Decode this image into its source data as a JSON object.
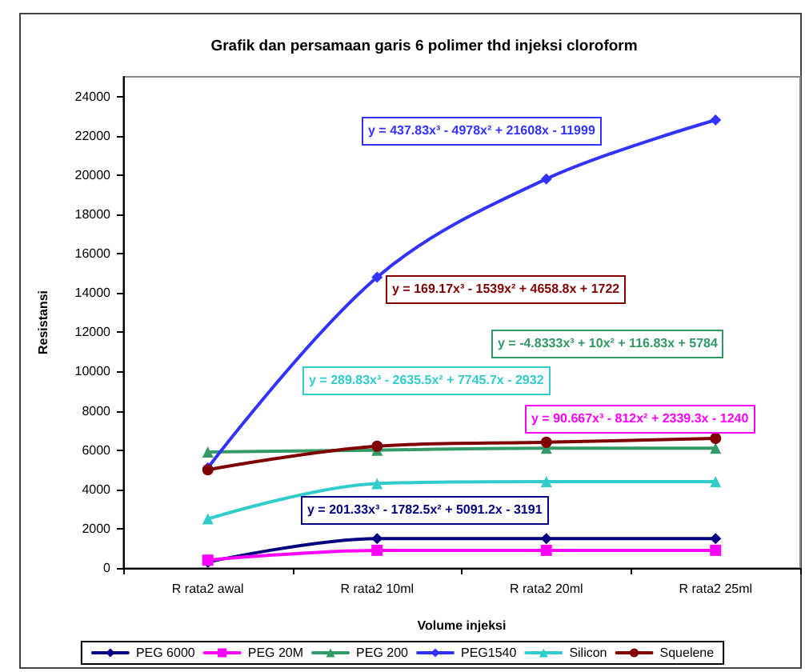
{
  "chart_data": {
    "type": "line",
    "title": "Grafik dan persamaan garis 6 polimer thd injeksi cloroform",
    "xlabel": "Volume injeksi",
    "ylabel": "Resistansi",
    "categories": [
      "R rata2 awal",
      "R rata2 10ml",
      "R rata2 20ml",
      "R rata2 25ml"
    ],
    "series": [
      {
        "name": "PEG 6000",
        "color": "#000080",
        "marker": "diamond",
        "values": [
          300,
          1500,
          1500,
          1500
        ]
      },
      {
        "name": "PEG 20M",
        "color": "#ff00ff",
        "marker": "square",
        "values": [
          400,
          900,
          900,
          900
        ]
      },
      {
        "name": "PEG 200",
        "color": "#339966",
        "marker": "triangle",
        "values": [
          5900,
          6000,
          6100,
          6100
        ]
      },
      {
        "name": "PEG1540",
        "color": "#3333ff",
        "marker": "diamond",
        "values": [
          5100,
          14800,
          19800,
          22800
        ]
      },
      {
        "name": "Silicon",
        "color": "#33cccc",
        "marker": "triangle",
        "values": [
          2500,
          4300,
          4400,
          4400
        ]
      },
      {
        "name": "Squelene",
        "color": "#800000",
        "marker": "circle",
        "values": [
          5000,
          6200,
          6400,
          6600
        ]
      }
    ],
    "ylim": [
      0,
      25000
    ],
    "yticks": [
      0,
      2000,
      4000,
      6000,
      8000,
      10000,
      12000,
      14000,
      16000,
      18000,
      20000,
      22000,
      24000
    ],
    "legend": "bottom",
    "annotations": [
      "y = 437.83x³ - 4978x² + 21608x - 11999",
      "y = 169.17x³ - 1539x² + 4658.8x + 1722",
      "y = -4.8333x³ + 10x² + 116.83x + 5784",
      "y = 289.83x³ - 2635.5x² + 7745.7x - 2932",
      "y = 90.667x³ - 812x² + 2339.3x - 1240",
      "y = 201.33x³ - 1782.5x² + 5091.2x - 3191"
    ]
  }
}
